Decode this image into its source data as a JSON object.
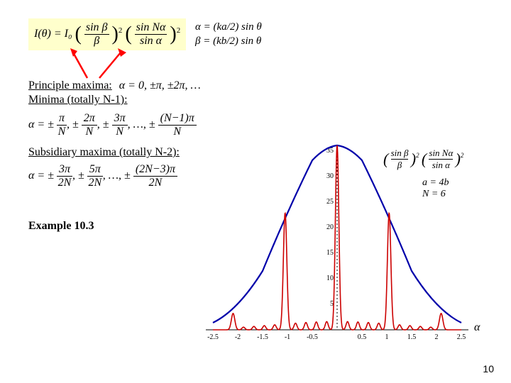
{
  "intensity_formula": {
    "left_box_bg": "#ffffcc",
    "text": "I(θ) = I₀",
    "frac1_num": "sin β",
    "frac1_den": "β",
    "frac2_num": "sin Nα",
    "frac2_den": "sin α",
    "exponent": "2",
    "right_eq1": "α = (ka/2) sin θ",
    "right_eq2": "β = (kb/2) sin θ"
  },
  "arrows": {
    "color": "#ff0000",
    "stroke_width": 2.5
  },
  "principle_maxima": {
    "label": "Principle maxima:",
    "condition": "α = 0, ±π, ±2π, …"
  },
  "minima": {
    "label": "Minima (totally N-1):",
    "formula_terms": "α = ± π/N, ± 2π/N, ± 3π/N, …, ± (N−1)π / N"
  },
  "subsidiary": {
    "label": "Subsidiary maxima (totally N-2):",
    "formula_terms": "α = ± 3π/2N, ± 5π/2N, …, ± (2N−3)π / 2N"
  },
  "example": {
    "label": "Example 10.3"
  },
  "chart": {
    "type": "line",
    "background_color": "#ffffff",
    "envelope_color": "#0000aa",
    "intensity_color": "#cc0000",
    "axis_color": "#000000",
    "grid_dotted_color": "#000000",
    "xlim": [
      -2.5,
      2.5
    ],
    "ylim": [
      0,
      36
    ],
    "xtick_positions": [
      -2.5,
      -2,
      -1.5,
      -1,
      -0.5,
      0,
      0.5,
      1,
      1.5,
      2,
      2.5
    ],
    "xtick_labels": [
      "-2.5",
      "-2",
      "-1.5",
      "-1",
      "-0.5",
      "0",
      "0.5",
      "1",
      "1.5",
      "2",
      "2.5"
    ],
    "ytick_positions": [
      0,
      5,
      10,
      15,
      20,
      25,
      30,
      35
    ],
    "ytick_labels": [
      "",
      "5",
      "10",
      "15",
      "20",
      "25",
      "30",
      "35"
    ],
    "envelope_showing": "(sin β/β)²(sin Nα/sin α)²",
    "params": "a = 4b, N = 6",
    "xlabel": "α",
    "envelope_values": {
      "x": [
        -2.5,
        -2,
        -1.5,
        -1,
        -0.5,
        0,
        0.5,
        1,
        1.5,
        2,
        2.5
      ],
      "y": [
        1.3,
        3.7,
        11.5,
        23.3,
        33.1,
        36,
        33.1,
        23.3,
        11.5,
        3.7,
        1.3
      ]
    },
    "main_peaks_x": [
      -2.094,
      -1.047,
      0,
      1.047,
      2.094
    ],
    "main_peaks_y": [
      3.2,
      22.8,
      36,
      22.8,
      3.2
    ],
    "subsidiary_between_count": 4,
    "line_width_envelope": 2.2,
    "line_width_intensity": 1.6
  },
  "page_number": "10"
}
